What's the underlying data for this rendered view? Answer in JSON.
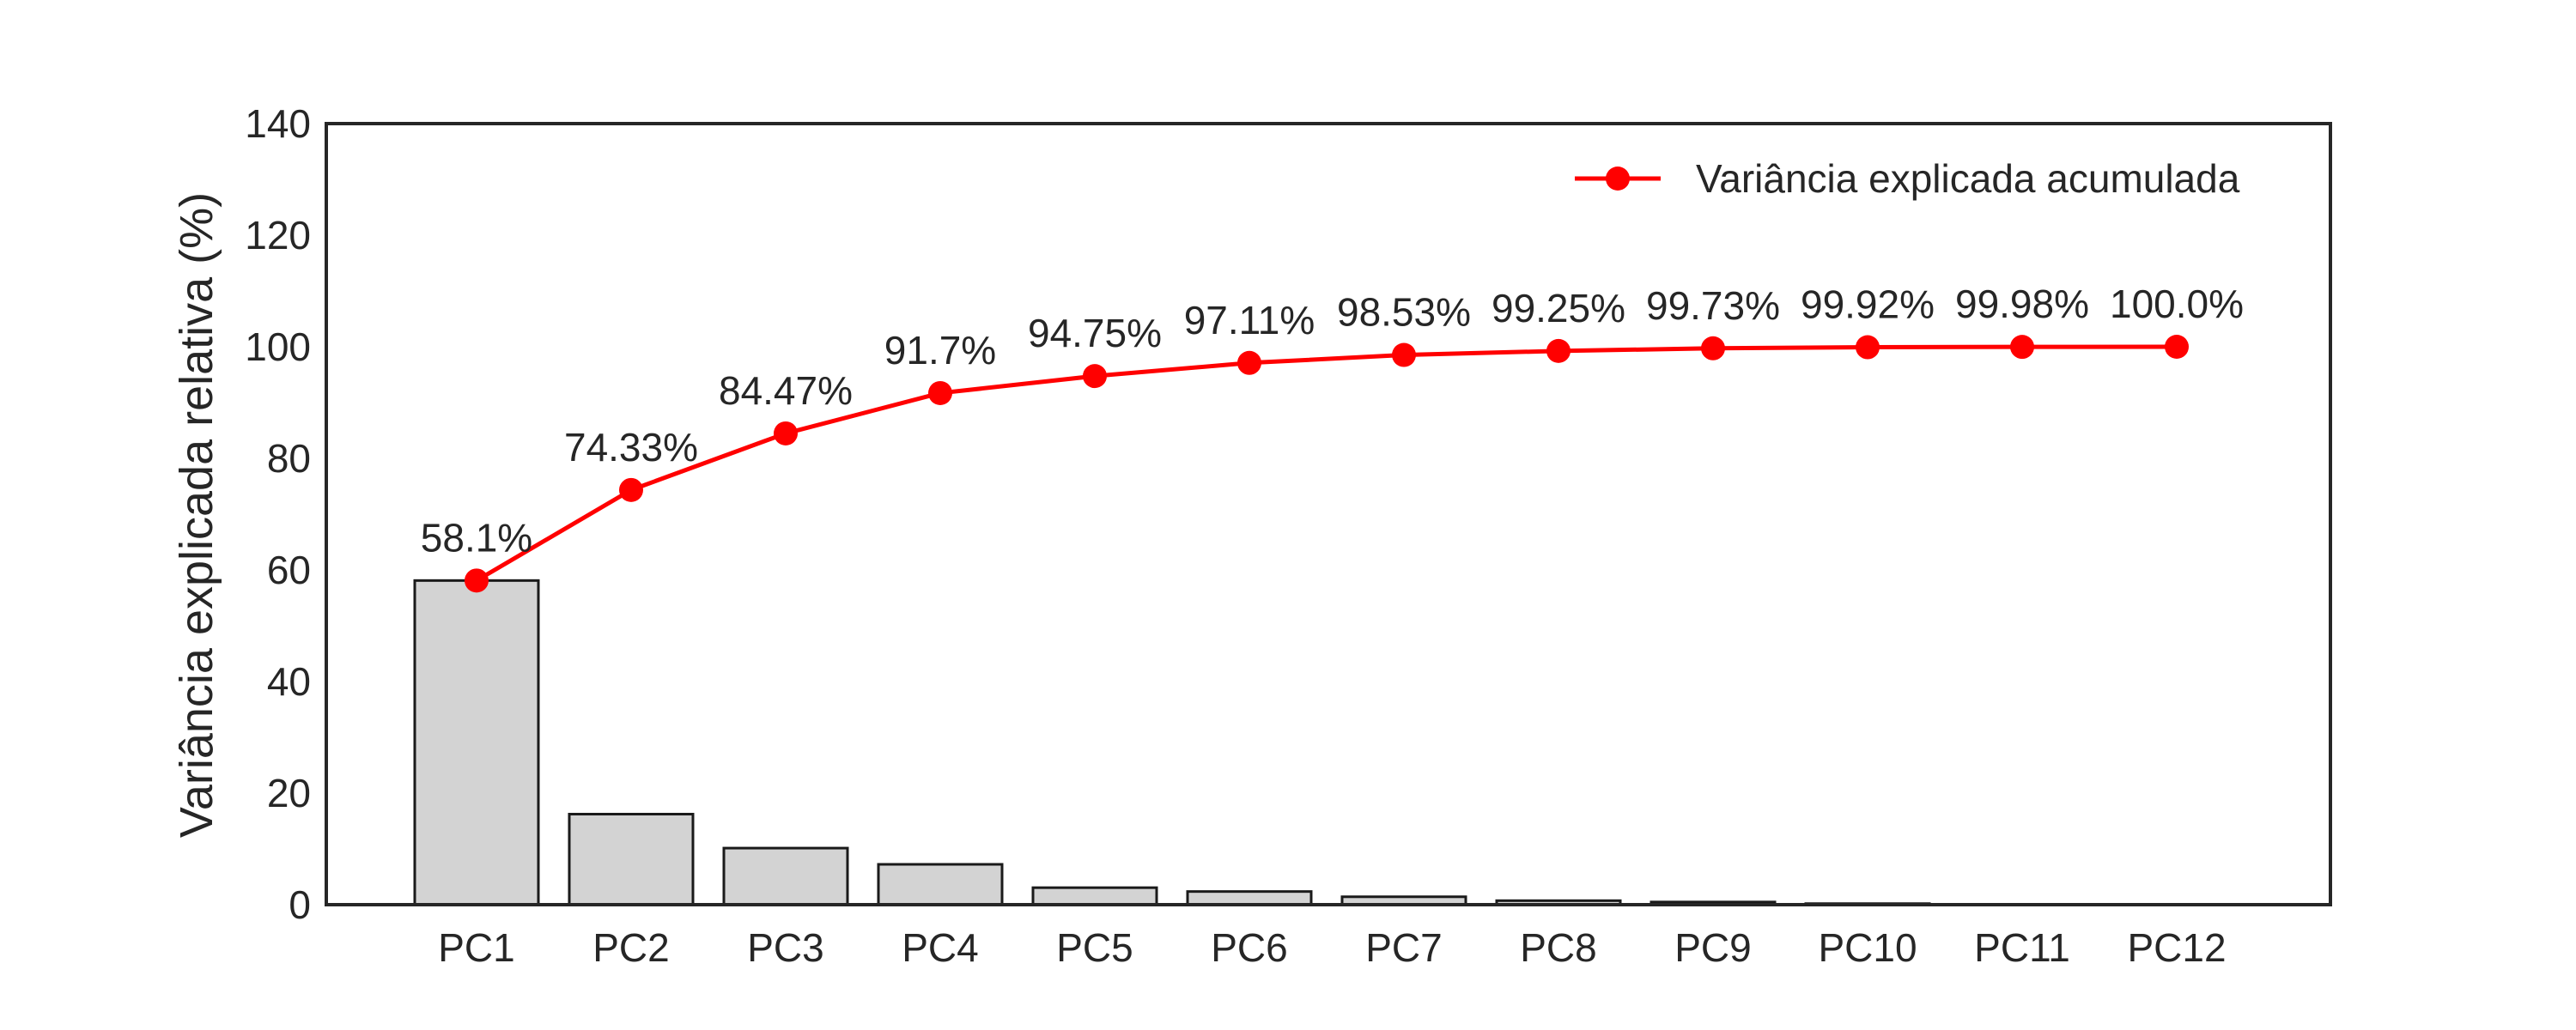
{
  "chart_data": {
    "type": "bar",
    "categories": [
      "PC1",
      "PC2",
      "PC3",
      "PC4",
      "PC5",
      "PC6",
      "PC7",
      "PC8",
      "PC9",
      "PC10",
      "PC11",
      "PC12"
    ],
    "series": [
      {
        "type": "bar",
        "values": [
          58.1,
          16.23,
          10.14,
          7.23,
          3.05,
          2.36,
          1.42,
          0.72,
          0.48,
          0.19,
          0.06,
          0.02
        ],
        "color": "#d3d3d3",
        "edge_color": "#1a1a1a"
      },
      {
        "type": "line",
        "name": "Variância explicada acumulada",
        "values": [
          58.1,
          74.33,
          84.47,
          91.7,
          94.75,
          97.11,
          98.53,
          99.25,
          99.73,
          99.92,
          99.98,
          100.0
        ],
        "labels": [
          "58.1%",
          "74.33%",
          "84.47%",
          "91.7%",
          "94.75%",
          "97.11%",
          "98.53%",
          "99.25%",
          "99.73%",
          "99.92%",
          "99.98%",
          "100.0%"
        ],
        "color": "#ff0000"
      }
    ],
    "title": "",
    "xlabel": "",
    "ylabel": "Variância explicada relativa (%)",
    "ylim": [
      0,
      140
    ],
    "yticks": [
      0,
      20,
      40,
      60,
      80,
      100,
      120,
      140
    ],
    "grid": false,
    "legend_position": "top-right"
  }
}
